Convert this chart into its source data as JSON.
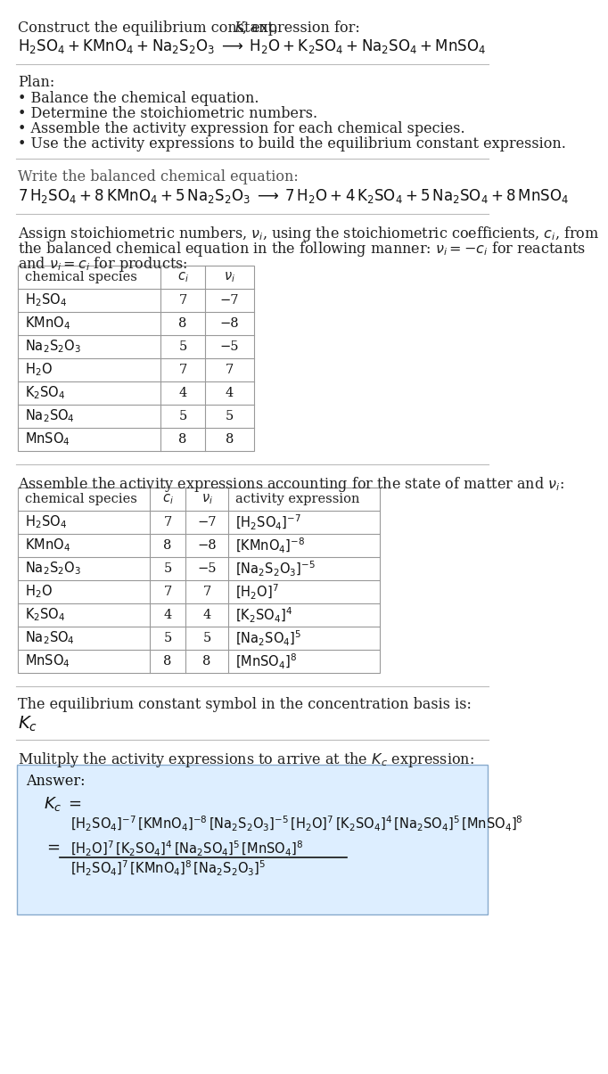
{
  "bg_color": "#ffffff",
  "title_text": "Construct the equilibrium constant, K, expression for:",
  "rxn_unbal": "H₂SO₄ + KMnO₄ + Na₂S₂O₃  →  H₂O + K₂SO₄ + Na₂SO₄ + MnSO₄",
  "plan_label": "Plan:",
  "plan_items": [
    "Balance the chemical equation.",
    "Determine the stoichiometric numbers.",
    "Assemble the activity expression for each chemical species.",
    "Use the activity expressions to build the equilibrium constant expression."
  ],
  "balanced_label": "Write the balanced chemical equation:",
  "stoich_line1": "Assign stoichiometric numbers, νi, using the stoichiometric coefficients, ci, from",
  "stoich_line2": "the balanced chemical equation in the following manner: νi = −ci for reactants",
  "stoich_line3": "and νi = ci for products:",
  "table1_cols": [
    "chemical species",
    "ci",
    "νi"
  ],
  "table1_rows": [
    [
      "H₂SO₄",
      "7",
      "−7"
    ],
    [
      "KMnO₄",
      "8",
      "−8"
    ],
    [
      "Na₂S₂O₃",
      "5",
      "−5"
    ],
    [
      "H₂O",
      "7",
      "7"
    ],
    [
      "K₂SO₄",
      "4",
      "4"
    ],
    [
      "Na₂SO₄",
      "5",
      "5"
    ],
    [
      "MnSO₄",
      "8",
      "8"
    ]
  ],
  "activity_line": "Assemble the activity expressions accounting for the state of matter and νi:",
  "table2_cols": [
    "chemical species",
    "ci",
    "νi",
    "activity expression"
  ],
  "table2_rows": [
    [
      "H₂SO₄",
      "7",
      "−7",
      "[H₂SO₄]⁻⁷"
    ],
    [
      "KMnO₄",
      "8",
      "−8",
      "[KMnO₄]⁻⁸"
    ],
    [
      "Na₂S₂O₃",
      "5",
      "−5",
      "[Na₂S₂O₃]⁻⁵"
    ],
    [
      "H₂O",
      "7",
      "7",
      "[H₂O]⁷"
    ],
    [
      "K₂SO₄",
      "4",
      "4",
      "[K₂SO₄]⁴"
    ],
    [
      "Na₂SO₄",
      "5",
      "5",
      "[Na₂SO₄]⁵"
    ],
    [
      "MnSO₄",
      "8",
      "8",
      "[MnSO₄]⁸"
    ]
  ],
  "kc_line": "The equilibrium constant symbol in the concentration basis is:",
  "kc_symbol": "Kc",
  "multiply_line": "Mulitply the activity expressions to arrive at the Kc expression:",
  "answer_label": "Answer:",
  "ans_line1_full": "[H₂SO₄]⁻⁷ [KMnO₄]⁻⁸ [Na₂S₂O₃]⁻⁵ [H₂O]⁷ [K₂SO₄]⁴ [Na₂SO₄]⁵ [MnSO₄]⁸",
  "ans_numer": "[H₂O]⁷ [K₂SO₄]⁴ [Na₂SO₄]⁵ [MnSO₄]⁸",
  "ans_denom": "[H₂SO₄]⁷ [KMnO₄]⁸ [Na₂S₂O₃]⁵"
}
